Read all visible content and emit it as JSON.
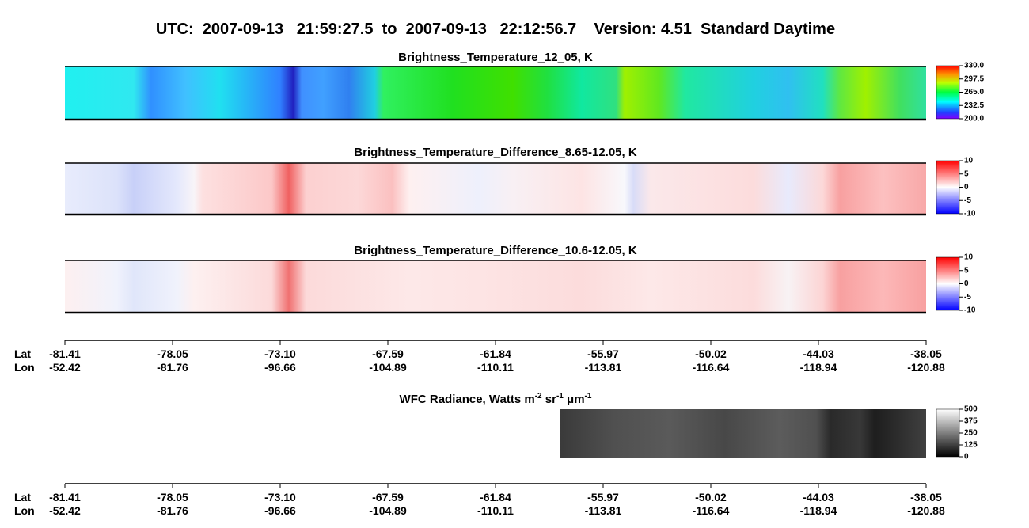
{
  "title": "UTC:  2007-09-13   21:59:27.5  to  2007-09-13   22:12:56.7    Version: 4.51  Standard Daytime",
  "panels": [
    {
      "title": "Brightness_Temperature_12_05, K",
      "colorbar": [
        "330.0",
        "297.5",
        "265.0",
        "232.5",
        "200.0"
      ]
    },
    {
      "title": "Brightness_Temperature_Difference_8.65-12.05, K",
      "colorbar": [
        "10",
        "5",
        "0",
        "-5",
        "-10"
      ]
    },
    {
      "title": "Brightness_Temperature_Difference_10.6-12.05, K",
      "colorbar": [
        "10",
        "5",
        "0",
        "-5",
        "-10"
      ]
    },
    {
      "title_parts": [
        "WFC Radiance, Watts m",
        "-2",
        " sr",
        "-1",
        " μm",
        "-1"
      ],
      "colorbar": [
        "500",
        "375",
        "250",
        "125",
        "0"
      ]
    }
  ],
  "axes": [
    {
      "lat_label": "Lat",
      "lon_label": "Lon",
      "lat": [
        "-81.41",
        "-78.05",
        "-73.10",
        "-67.59",
        "-61.84",
        "-55.97",
        "-50.02",
        "-44.03",
        "-38.05"
      ],
      "lon": [
        "-52.42",
        "-81.76",
        "-96.66",
        "-104.89",
        "-110.11",
        "-113.81",
        "-116.64",
        "-118.94",
        "-120.88"
      ]
    },
    {
      "lat_label": "Lat",
      "lon_label": "Lon",
      "lat": [
        "-81.41",
        "-78.05",
        "-73.10",
        "-67.59",
        "-61.84",
        "-55.97",
        "-50.02",
        "-44.03",
        "-38.05"
      ],
      "lon": [
        "-52.42",
        "-81.76",
        "-96.66",
        "-104.89",
        "-110.11",
        "-113.81",
        "-116.64",
        "-118.94",
        "-120.88"
      ]
    }
  ]
}
